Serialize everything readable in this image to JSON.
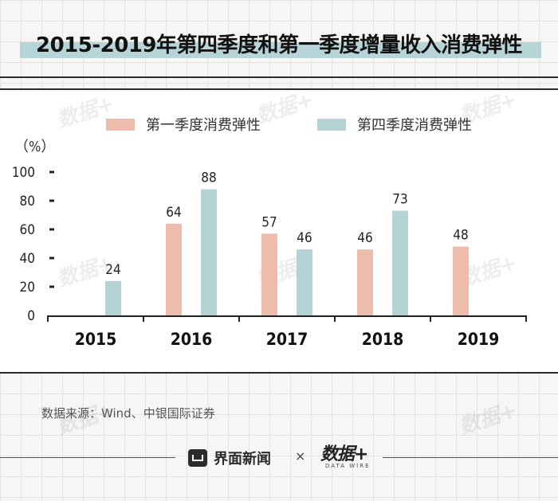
{
  "header": {
    "title": "2015-2019年第四季度和第一季度增量收入消费弹性"
  },
  "colors": {
    "q1": "#eebcad",
    "q4": "#b4d3d5",
    "title_band": "#b7d5d8"
  },
  "chart_data": {
    "type": "bar",
    "title": "2015-2019年第四季度和第一季度增量收入消费弹性",
    "unit_label": "（%）",
    "categories": [
      "2015",
      "2016",
      "2017",
      "2018",
      "2019"
    ],
    "series": [
      {
        "name": "第一季度消费弹性",
        "values": [
          null,
          64,
          57,
          46,
          48
        ],
        "labels": [
          "",
          "64",
          "57",
          "46",
          "48"
        ]
      },
      {
        "name": "第四季度消费弹性",
        "values": [
          24,
          88,
          46,
          73,
          null
        ],
        "labels": [
          "24",
          "88",
          "46",
          "73",
          ""
        ]
      }
    ],
    "ylim": [
      0,
      100
    ],
    "yticks": [
      "0",
      "20",
      "40",
      "60",
      "80",
      "100"
    ],
    "legend_position": "top"
  },
  "source": "数据来源：Wind、中银国际证券",
  "footer": {
    "brand": "界面新闻",
    "times": "×",
    "partner": "数据+",
    "partner_sub": "DATA WIRE"
  },
  "watermark": "数据+"
}
